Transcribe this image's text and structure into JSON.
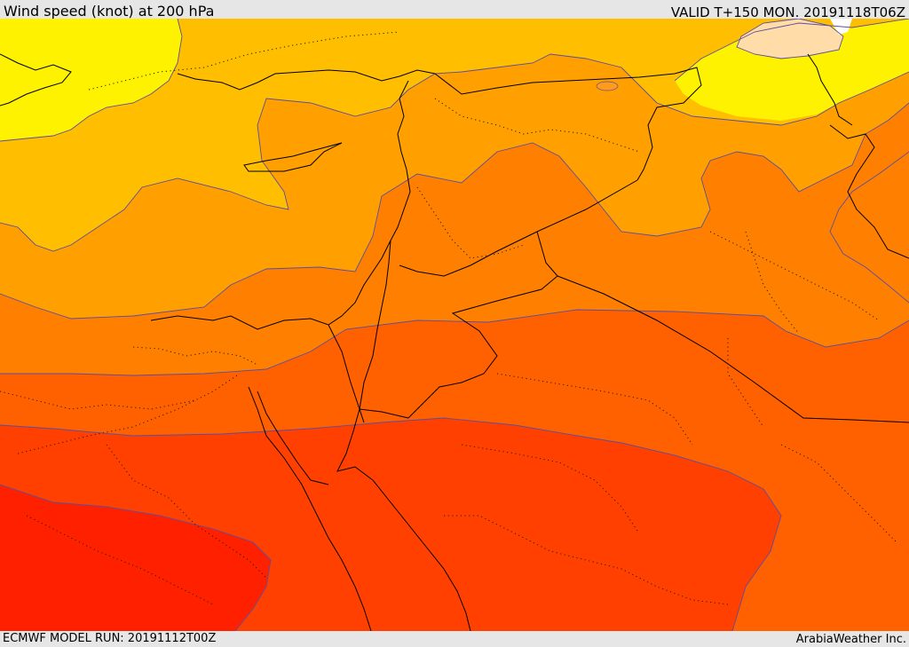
{
  "header": {
    "title": "Wind speed (knot) at 200 hPa",
    "valid": "VALID T+150 MON. 20191118T06Z"
  },
  "footer": {
    "model_run": "ECMWF MODEL RUN: 20191112T00Z",
    "credit": "ArabiaWeather Inc."
  },
  "colors": {
    "band_pale": "#ffdca8",
    "band_yellow": "#fff200",
    "band_amber": "#ffbf00",
    "band_orange1": "#ffa000",
    "band_orange2": "#ff8000",
    "band_orange3": "#ff6000",
    "band_redorange": "#ff4000",
    "band_red": "#ff2000",
    "contour": "#5b4ea0"
  }
}
